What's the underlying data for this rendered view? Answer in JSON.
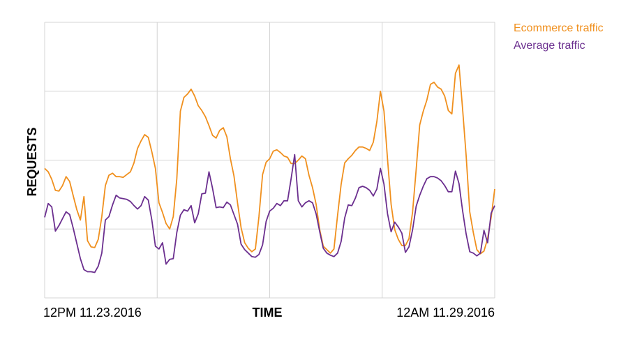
{
  "chart_data": {
    "type": "line",
    "xlabel": "TIME",
    "ylabel": "REQUESTS",
    "x_start_label": "12PM 11.23.2016",
    "x_end_label": "12AM 11.29.2016",
    "ylim": [
      0,
      4
    ],
    "grid": true,
    "legend_position": "top-right",
    "series": [
      {
        "name": "Ecommerce traffic",
        "color": "#f0901e",
        "values": [
          1.88,
          1.83,
          1.72,
          1.56,
          1.55,
          1.63,
          1.76,
          1.69,
          1.48,
          1.28,
          1.13,
          1.47,
          0.83,
          0.74,
          0.73,
          0.85,
          1.18,
          1.63,
          1.78,
          1.81,
          1.76,
          1.76,
          1.75,
          1.79,
          1.83,
          1.96,
          2.17,
          2.28,
          2.37,
          2.33,
          2.12,
          1.88,
          1.38,
          1.24,
          1.08,
          1.0,
          1.18,
          1.73,
          2.71,
          2.91,
          2.96,
          3.03,
          2.93,
          2.79,
          2.72,
          2.63,
          2.5,
          2.36,
          2.32,
          2.43,
          2.47,
          2.34,
          2.02,
          1.77,
          1.38,
          1.02,
          0.8,
          0.72,
          0.67,
          0.71,
          1.18,
          1.79,
          1.97,
          2.02,
          2.13,
          2.15,
          2.11,
          2.06,
          2.04,
          1.95,
          1.95,
          2.0,
          2.06,
          2.02,
          1.78,
          1.6,
          1.36,
          0.99,
          0.75,
          0.7,
          0.65,
          0.71,
          1.2,
          1.65,
          1.96,
          2.02,
          2.07,
          2.14,
          2.19,
          2.19,
          2.17,
          2.14,
          2.26,
          2.56,
          3.0,
          2.71,
          2.01,
          1.36,
          0.99,
          0.85,
          0.76,
          0.76,
          0.86,
          1.25,
          1.86,
          2.51,
          2.71,
          2.87,
          3.1,
          3.13,
          3.06,
          3.03,
          2.93,
          2.72,
          2.67,
          3.26,
          3.38,
          2.75,
          2.07,
          1.25,
          0.95,
          0.7,
          0.64,
          0.68,
          0.86,
          1.17,
          1.58
        ]
      },
      {
        "name": "Average traffic",
        "color": "#6b2f8f",
        "values": [
          1.17,
          1.37,
          1.32,
          0.97,
          1.05,
          1.15,
          1.25,
          1.21,
          1.01,
          0.79,
          0.57,
          0.41,
          0.38,
          0.38,
          0.37,
          0.46,
          0.65,
          1.13,
          1.18,
          1.35,
          1.49,
          1.45,
          1.44,
          1.43,
          1.4,
          1.34,
          1.29,
          1.34,
          1.47,
          1.42,
          1.13,
          0.75,
          0.71,
          0.8,
          0.49,
          0.56,
          0.57,
          0.95,
          1.2,
          1.28,
          1.26,
          1.34,
          1.09,
          1.22,
          1.51,
          1.52,
          1.83,
          1.59,
          1.31,
          1.32,
          1.31,
          1.39,
          1.35,
          1.21,
          1.07,
          0.78,
          0.7,
          0.65,
          0.6,
          0.59,
          0.63,
          0.77,
          1.11,
          1.26,
          1.3,
          1.37,
          1.34,
          1.41,
          1.41,
          1.73,
          2.08,
          1.41,
          1.32,
          1.38,
          1.41,
          1.38,
          1.22,
          0.96,
          0.72,
          0.65,
          0.62,
          0.6,
          0.65,
          0.82,
          1.16,
          1.35,
          1.34,
          1.45,
          1.6,
          1.62,
          1.6,
          1.56,
          1.48,
          1.58,
          1.88,
          1.65,
          1.22,
          0.96,
          1.1,
          1.03,
          0.94,
          0.66,
          0.74,
          0.99,
          1.33,
          1.49,
          1.62,
          1.73,
          1.76,
          1.76,
          1.74,
          1.7,
          1.63,
          1.54,
          1.54,
          1.84,
          1.66,
          1.27,
          0.93,
          0.67,
          0.65,
          0.61,
          0.65,
          0.98,
          0.8,
          1.23,
          1.34
        ]
      }
    ]
  }
}
